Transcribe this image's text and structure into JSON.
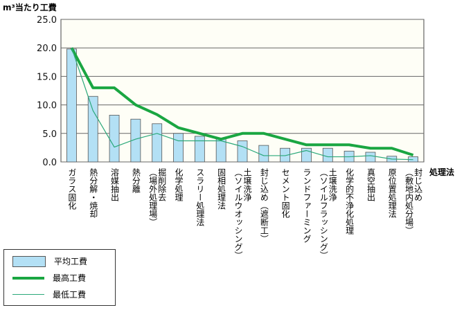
{
  "chart_data": {
    "type": "bar",
    "title": "",
    "ylabel": "m³当たり工費",
    "xlabel": "処理法",
    "ylim": [
      0,
      25
    ],
    "yticks": [
      "0.0",
      "5.0",
      "10.0",
      "15.0",
      "20.0",
      "25.0"
    ],
    "categories": [
      "ガラス固化",
      "熱分解・焼却",
      "溶媒抽出",
      "熱分離",
      "掘削除去\n（場外処理場）",
      "化学処理",
      "スラリー処理法",
      "固相処理法",
      "土壌洗浄\n（ソイルウオッシング）",
      "封じ込め（遮断工）",
      "セメント固化",
      "ランドファーミング",
      "土壌洗浄\n（ソイルフラッシング）",
      "化学的不浄化処理",
      "真空抽出",
      "原位置処理法",
      "封じ込め\n（敷地内処分場）"
    ],
    "series": [
      {
        "name": "平均工費",
        "type": "bar",
        "values": [
          19.8,
          11.5,
          8.2,
          7.5,
          6.7,
          5.0,
          4.5,
          4.0,
          3.7,
          2.9,
          2.4,
          2.4,
          2.4,
          1.9,
          1.7,
          1.0,
          0.9
        ]
      },
      {
        "name": "最高工費",
        "type": "line",
        "values": [
          20,
          13,
          13,
          10,
          8.3,
          6,
          5,
          4,
          5,
          5,
          4,
          3,
          3,
          3,
          2.4,
          2.4,
          1.2
        ]
      },
      {
        "name": "最低工費",
        "type": "line",
        "values": [
          20,
          9,
          2.6,
          4,
          5,
          3.7,
          3.7,
          3.7,
          2.7,
          1.1,
          1.1,
          2.0,
          0.9,
          0.9,
          1.1,
          0.5,
          0.4
        ]
      }
    ],
    "grid": true,
    "legend": "bottom-left",
    "colors": {
      "bar": "#b3e0f5",
      "max": "#1aa642",
      "min": "#2aa87a"
    }
  }
}
